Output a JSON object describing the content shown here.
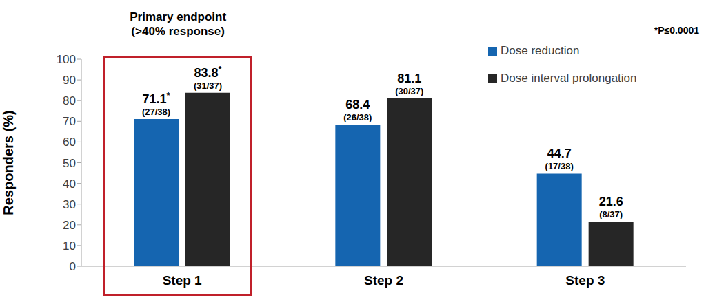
{
  "chart_data": {
    "type": "bar",
    "categories": [
      "Step 1",
      "Step 2",
      "Step 3"
    ],
    "y_label": "Responders (%)",
    "series": [
      {
        "name": "Dose reduction",
        "color": "#1565b0",
        "values": [
          71.1,
          68.4,
          44.7
        ],
        "value_labels": [
          "71.1*",
          "68.4",
          "44.7"
        ],
        "count_labels": [
          "(27/38)",
          "(26/38)",
          "(17/38)"
        ]
      },
      {
        "name": "Dose interval prolongation",
        "color": "#262626",
        "values": [
          83.8,
          81.1,
          21.6
        ],
        "value_labels": [
          "83.8*",
          "81.1",
          "21.6"
        ],
        "count_labels": [
          "(31/37)",
          "(30/37)",
          "(8/37)"
        ]
      }
    ],
    "ylim": [
      0,
      100
    ],
    "yticks": [
      0,
      10,
      20,
      30,
      40,
      50,
      60,
      70,
      80,
      90,
      100
    ],
    "grid": false,
    "legend": "top right",
    "data_labels": true,
    "highlight_category": "Step 1",
    "highlight_text": [
      "Primary endpoint",
      "(>40% response)"
    ],
    "footnote": "*P≤0.0001"
  }
}
